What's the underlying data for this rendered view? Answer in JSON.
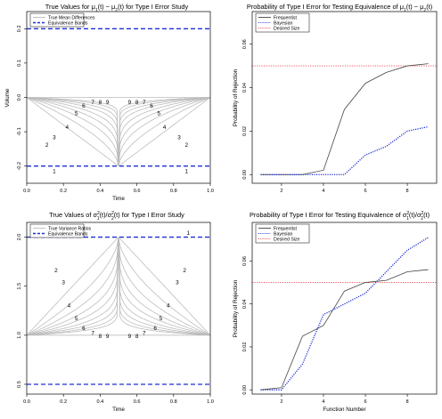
{
  "chart_data": [
    {
      "type": "line",
      "title_parts": [
        "True Values for ",
        "μ",
        "1",
        "(t) − ",
        "μ",
        "2",
        "(t) for Type I Error Study"
      ],
      "xlabel": "Time",
      "ylabel": "Volume",
      "xlim": [
        0,
        1
      ],
      "ylim": [
        -0.25,
        0.25
      ],
      "xticks": [
        "0.0",
        "0.2",
        "0.4",
        "0.6",
        "0.8",
        "1.0"
      ],
      "yticks": [
        "-0.2",
        "-0.1",
        "0.0",
        "0.1",
        "0.2"
      ],
      "ytick_values": [
        -0.2,
        -0.1,
        0.0,
        0.1,
        0.2
      ],
      "legend": {
        "position": "top-left",
        "entries": [
          {
            "label": "True Mean Differences",
            "color": "#bdbdbd",
            "style": "solid"
          },
          {
            "label": "Equivalence Bands",
            "color": "#1f2fd0",
            "style": "dashed"
          }
        ]
      },
      "equivalence_bands": [
        -0.2,
        0.2
      ],
      "baseline": 0.0,
      "center": {
        "x": 0.5,
        "y": -0.2
      },
      "curve_labels": [
        "1",
        "2",
        "3",
        "4",
        "5",
        "6",
        "7",
        "8",
        "9"
      ],
      "curve_label_positions": [
        {
          "curve": 1,
          "left": [
            0.15,
            -0.215
          ],
          "right": [
            0.87,
            -0.215
          ]
        },
        {
          "curve": 2,
          "left": [
            0.11,
            -0.139
          ],
          "right": [
            0.87,
            -0.139
          ]
        },
        {
          "curve": 3,
          "left": [
            0.15,
            -0.117
          ],
          "right": [
            0.83,
            -0.117
          ]
        },
        {
          "curve": 4,
          "left": [
            0.22,
            -0.087
          ],
          "right": [
            0.75,
            -0.087
          ]
        },
        {
          "curve": 5,
          "left": [
            0.27,
            -0.047
          ],
          "right": [
            0.72,
            -0.047
          ]
        },
        {
          "curve": 6,
          "left": [
            0.31,
            -0.025
          ],
          "right": [
            0.68,
            -0.025
          ]
        },
        {
          "curve": 7,
          "left": [
            0.36,
            -0.014
          ],
          "right": [
            0.64,
            -0.014
          ]
        },
        {
          "curve": 8,
          "left": [
            0.4,
            -0.014
          ],
          "right": [
            0.6,
            -0.014
          ]
        },
        {
          "curve": 9,
          "left": [
            0.44,
            -0.014
          ],
          "right": [
            0.56,
            -0.014
          ]
        }
      ],
      "curve_shape_exponents": [
        1,
        0.6,
        0.4,
        0.28,
        0.2,
        0.14,
        0.1,
        0.07,
        0.05
      ]
    },
    {
      "type": "line",
      "title_parts": [
        "Probability of Type I Error for Testing Equivalence of ",
        "μ",
        "1",
        "(t) − ",
        "μ",
        "2",
        "(t)"
      ],
      "xlabel": "",
      "ylabel": "Probability of Rejection",
      "xlim": [
        0.6,
        9.4
      ],
      "ylim": [
        -0.004,
        0.075
      ],
      "xticks": [
        "2",
        "4",
        "6",
        "8"
      ],
      "xtick_values": [
        2,
        4,
        6,
        8
      ],
      "yticks": [
        "0.00",
        "0.02",
        "0.04",
        "0.06"
      ],
      "ytick_values": [
        0.0,
        0.02,
        0.04,
        0.06
      ],
      "legend": {
        "position": "top-left",
        "entries": [
          {
            "label": "Frequentist",
            "color": "#444444",
            "style": "solid"
          },
          {
            "label": "Bayesian",
            "color": "#1f2fd0",
            "style": "dotted"
          },
          {
            "label": "Desired Size",
            "color": "#e8414b",
            "style": "dotted"
          }
        ]
      },
      "x": [
        1,
        2,
        3,
        4,
        5,
        6,
        7,
        8,
        9
      ],
      "series": [
        {
          "name": "Frequentist",
          "color": "#444444",
          "values": [
            0.0,
            0.0,
            0.0,
            0.002,
            0.03,
            0.042,
            0.047,
            0.05,
            0.051
          ]
        },
        {
          "name": "Bayesian",
          "color": "#1f2fd0",
          "values": [
            0.0,
            0.0,
            0.0,
            0.0,
            0.0,
            0.009,
            0.013,
            0.02,
            0.022
          ]
        }
      ],
      "reference_line": {
        "name": "Desired Size",
        "value": 0.05,
        "color": "#e8414b"
      }
    },
    {
      "type": "line",
      "title_parts": [
        "True Values of ",
        "σ",
        "2",
        "1",
        "(t)/",
        "σ",
        "2",
        "2",
        "(t) for Type I Error Study"
      ],
      "xlabel": "Time",
      "ylabel": "",
      "xlim": [
        0,
        1
      ],
      "ylim": [
        0.4,
        2.15
      ],
      "xticks": [
        "0.0",
        "0.2",
        "0.4",
        "0.6",
        "0.8",
        "1.0"
      ],
      "yticks": [
        "0.5",
        "1.0",
        "1.5",
        "2.0"
      ],
      "ytick_values": [
        0.5,
        1.0,
        1.5,
        2.0
      ],
      "legend": {
        "position": "top-left",
        "entries": [
          {
            "label": "True Variance Ratios",
            "color": "#bdbdbd",
            "style": "solid"
          },
          {
            "label": "Equivalence Bands",
            "color": "#1f2fd0",
            "style": "dashed"
          }
        ]
      },
      "equivalence_bands": [
        0.5,
        2.0
      ],
      "baseline": 1.0,
      "center": {
        "x": 0.5,
        "y": 2.0
      },
      "curve_labels": [
        "1",
        "2",
        "3",
        "4",
        "5",
        "6",
        "7",
        "8",
        "9"
      ],
      "curve_label_positions": [
        {
          "curve": 1,
          "left": [
            0.15,
            2.04
          ],
          "right": [
            0.88,
            2.04
          ]
        },
        {
          "curve": 2,
          "left": [
            0.16,
            1.66
          ],
          "right": [
            0.86,
            1.66
          ]
        },
        {
          "curve": 3,
          "left": [
            0.2,
            1.54
          ],
          "right": [
            0.82,
            1.54
          ]
        },
        {
          "curve": 4,
          "left": [
            0.23,
            1.3
          ],
          "right": [
            0.77,
            1.3
          ]
        },
        {
          "curve": 5,
          "left": [
            0.27,
            1.17
          ],
          "right": [
            0.73,
            1.17
          ]
        },
        {
          "curve": 6,
          "left": [
            0.31,
            1.07
          ],
          "right": [
            0.7,
            1.07
          ]
        },
        {
          "curve": 7,
          "left": [
            0.36,
            1.02
          ],
          "right": [
            0.64,
            1.02
          ]
        },
        {
          "curve": 8,
          "left": [
            0.4,
            0.99
          ],
          "right": [
            0.6,
            0.99
          ]
        },
        {
          "curve": 9,
          "left": [
            0.44,
            0.99
          ],
          "right": [
            0.56,
            0.99
          ]
        }
      ],
      "curve_shape_exponents": [
        1,
        0.6,
        0.4,
        0.28,
        0.2,
        0.14,
        0.1,
        0.07,
        0.05
      ]
    },
    {
      "type": "line",
      "title_parts": [
        "Probability of Type I Error for Testing Equivalence of ",
        "σ",
        "2",
        "1",
        "(t)/",
        "σ",
        "2",
        "2",
        "(t)"
      ],
      "xlabel": "Function Number",
      "ylabel": "Probability of Rejection",
      "xlim": [
        0.6,
        9.4
      ],
      "ylim": [
        -0.002,
        0.078
      ],
      "xticks": [
        "2",
        "4",
        "6",
        "8"
      ],
      "xtick_values": [
        2,
        4,
        6,
        8
      ],
      "yticks": [
        "0.00",
        "0.02",
        "0.04",
        "0.06"
      ],
      "ytick_values": [
        0.0,
        0.02,
        0.04,
        0.06
      ],
      "legend": {
        "position": "top-left",
        "entries": [
          {
            "label": "Frequentist",
            "color": "#444444",
            "style": "solid"
          },
          {
            "label": "Bayesian",
            "color": "#1f2fd0",
            "style": "dotted"
          },
          {
            "label": "Desired Size",
            "color": "#e8414b",
            "style": "dotted"
          }
        ]
      },
      "x": [
        1,
        2,
        3,
        4,
        5,
        6,
        7,
        8,
        9
      ],
      "series": [
        {
          "name": "Frequentist",
          "color": "#444444",
          "values": [
            0.0,
            0.001,
            0.025,
            0.03,
            0.046,
            0.05,
            0.051,
            0.055,
            0.056
          ]
        },
        {
          "name": "Bayesian",
          "color": "#1f2fd0",
          "values": [
            0.0,
            0.0,
            0.012,
            0.035,
            0.04,
            0.045,
            0.055,
            0.065,
            0.071
          ]
        }
      ],
      "reference_line": {
        "name": "Desired Size",
        "value": 0.05,
        "color": "#e8414b"
      }
    }
  ]
}
